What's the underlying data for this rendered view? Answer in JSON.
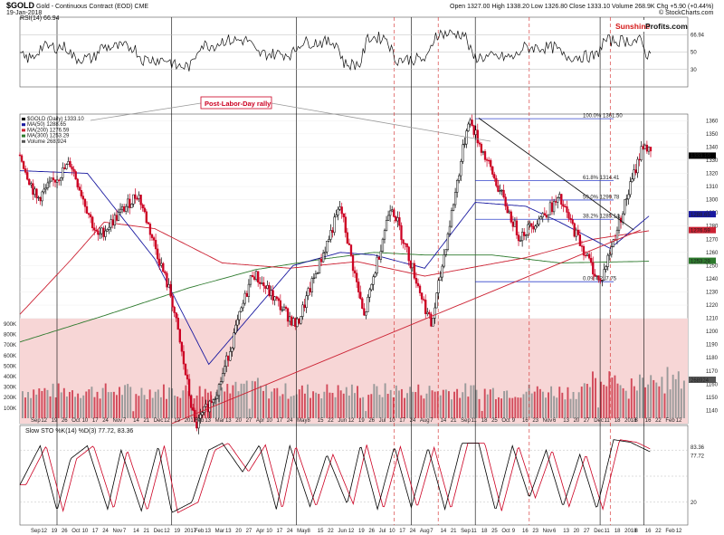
{
  "header": {
    "symbol": "$GOLD",
    "description": "Gold - Continuous Contract (EOD) CME",
    "date": "19-Jan-2018",
    "ohlc": "Open 1327.00  High 1338.20  Low 1326.80  Close 1333.10  Volume 268.9K  Chg +5.90 (+0.44%)",
    "copyright": "© StockCharts.com",
    "rsi_label": "RSI(14) 66.94",
    "brand_a": "Sunshine",
    "brand_b": "Profits.com"
  },
  "annotation": {
    "text": "Post-Labor-Day rally"
  },
  "colors": {
    "up": "#000000",
    "down": "#cc0022",
    "ma50": "#1a1aa0",
    "ma200": "#cc2233",
    "ma300": "#2d7a2d",
    "volume_zone": "#f7d6d6",
    "fib": "#3344cc",
    "event_line": "#d22222"
  },
  "chart_data": [
    {
      "type": "line",
      "name": "RSI panel",
      "title": "RSI(14) 66.94",
      "ylim": [
        10,
        90
      ],
      "levels": [
        70,
        50,
        30
      ],
      "tick_labels": [
        "66.94",
        "50",
        "30"
      ],
      "last_value": 66.94
    },
    {
      "type": "candlestick",
      "name": "Gold daily price",
      "ylim": [
        1130,
        1365
      ],
      "y_ticks": [
        1360,
        1350,
        1340,
        1330,
        1320,
        1310,
        1300,
        1290,
        1280,
        1270,
        1260,
        1250,
        1240,
        1230,
        1220,
        1210,
        1200,
        1190,
        1180,
        1170,
        1160,
        1150,
        1140
      ],
      "legend": [
        "$GOLD (Daily) 1333.10",
        "MA(50) 1288.65",
        "MA(200) 1276.59",
        "MA(300) 1253.29",
        "Volume 268,924"
      ],
      "right_labels": [
        "1333.10",
        "1288.65",
        "1276.59",
        "1253.29",
        "268924"
      ],
      "anchors": {
        "x": [
          0,
          0.5,
          1.5,
          2.3,
          3.5,
          4.5,
          5.2,
          5.9,
          6.9,
          8.2,
          9.5,
          10.2,
          11,
          12.2,
          13.3,
          14.8,
          16,
          17.2,
          18.5,
          18.7
        ],
        "y": [
          1334,
          1300,
          1328,
          1271,
          1305,
          1225,
          1127,
          1158,
          1245,
          1204,
          1295,
          1210,
          1298,
          1204,
          1362,
          1272,
          1300,
          1236,
          1344,
          1333
        ]
      },
      "ma50": {
        "x": [
          0,
          2,
          4,
          5.6,
          6.6,
          8.1,
          9.5,
          10.5,
          12,
          13.5,
          15,
          16,
          17.5,
          18.7
        ],
        "y": [
          1322,
          1320,
          1255,
          1175,
          1205,
          1250,
          1260,
          1258,
          1248,
          1298,
          1295,
          1283,
          1263,
          1288.65
        ]
      },
      "ma200": {
        "x": [
          0,
          1.5,
          2.5,
          4,
          6,
          8,
          10,
          12,
          13.5,
          15,
          17,
          18.7
        ],
        "y": [
          1213,
          1254,
          1283,
          1278,
          1252,
          1248,
          1253,
          1242,
          1249,
          1256,
          1270,
          1276.59
        ]
      },
      "ma300": {
        "x": [
          0,
          2.5,
          5,
          7,
          9,
          10.5,
          12,
          14,
          16,
          18.7
        ],
        "y": [
          1192,
          1212,
          1233,
          1247,
          1255,
          1260,
          1258,
          1258,
          1252,
          1253.29
        ]
      },
      "fib": {
        "x0": 13.5,
        "x1": 17.6,
        "lines": [
          {
            "label": "100.0% 1361.50",
            "price": 1361.5
          },
          {
            "label": "61.8% 1314.41",
            "price": 1314.41
          },
          {
            "label": "50.0% 1299.78",
            "price": 1299.78
          },
          {
            "label": "38.2% 1285.14",
            "price": 1285.14
          },
          {
            "label": "0.0% 1237.75",
            "price": 1237.75
          }
        ]
      },
      "trendlines": [
        {
          "color": "#111111",
          "x": [
            13.6,
            18.2
          ],
          "y": [
            1362,
            1277
          ]
        },
        {
          "color": "#cc2233",
          "x": [
            4.5,
            18.4
          ],
          "y": [
            1130,
            1277
          ]
        }
      ],
      "volume_ticks": [
        "900K",
        "800K",
        "700K",
        "600K",
        "500K",
        "400K",
        "300K",
        "200K",
        "100K"
      ],
      "volume_last": "268924"
    },
    {
      "type": "line",
      "name": "Slow stochastic",
      "title": "Slow STO %K(14) %D(3) 77.72, 83.36",
      "ylim": [
        0,
        100
      ],
      "levels": [
        80,
        50,
        20
      ],
      "tick_labels": [
        "83.36",
        "77.72",
        "20"
      ],
      "k_last": 77.72,
      "d_last": 83.36,
      "k": {
        "x": [
          0,
          0.6,
          1.1,
          1.5,
          2.0,
          2.6,
          3.0,
          3.6,
          4.1,
          4.5,
          5.1,
          5.6,
          6.0,
          6.6,
          7.1,
          7.6,
          8.0,
          8.6,
          9.1,
          9.7,
          10.1,
          10.6,
          11.1,
          11.6,
          12.1,
          12.6,
          13.1,
          13.6,
          14.1,
          14.6,
          15.1,
          15.6,
          16.1,
          16.6,
          17.1,
          17.6,
          18.1,
          18.7
        ],
        "y": [
          40,
          85,
          10,
          70,
          85,
          12,
          80,
          10,
          85,
          8,
          20,
          80,
          88,
          55,
          86,
          12,
          85,
          15,
          75,
          18,
          86,
          12,
          84,
          14,
          83,
          12,
          88,
          88,
          10,
          85,
          25,
          80,
          15,
          75,
          12,
          92,
          89,
          77.72
        ]
      }
    }
  ],
  "x_axis": {
    "labels": [
      "Sep",
      "12",
      "19",
      "26",
      "Oct",
      "10",
      "17",
      "24",
      "Nov",
      "7",
      "14",
      "21",
      "Dec",
      "12",
      "19",
      "2017",
      "Feb",
      "13",
      "Mar",
      "13",
      "20",
      "27",
      "Apr",
      "10",
      "17",
      "24",
      "May",
      "8",
      "15",
      "22",
      "Jun",
      "12",
      "19",
      "26",
      "Jul",
      "10",
      "17",
      "24",
      "Aug",
      "7",
      "14",
      "21",
      "Sep",
      "11",
      "18",
      "25",
      "Oct",
      "9",
      "16",
      "23",
      "Nov",
      "6",
      "13",
      "20",
      "27",
      "Dec",
      "11",
      "18",
      "2018",
      "8",
      "16",
      "22",
      "Feb",
      "12"
    ]
  }
}
